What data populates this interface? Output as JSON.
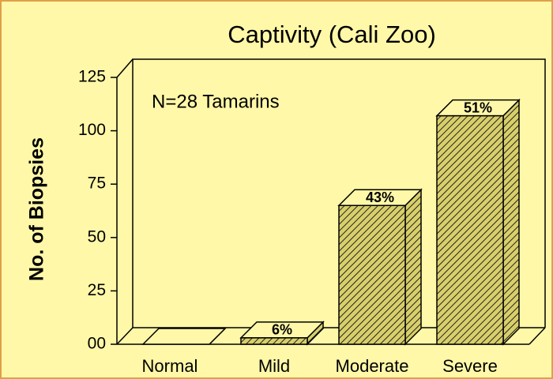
{
  "chart_data": {
    "type": "bar3d",
    "title": "Captivity (Cali Zoo)",
    "annotation": "N=28  Tamarins",
    "y_label": "No. of Biopsies",
    "categories": [
      "Normal",
      "Mild",
      "Moderate",
      "Severe"
    ],
    "values": [
      0,
      3,
      65,
      107
    ],
    "bar_labels": [
      null,
      "6%",
      "43%",
      "51%"
    ],
    "color": "#d9cf6a",
    "ylim": [
      0,
      125
    ],
    "yticks": [
      {
        "value": 0,
        "label": "00"
      },
      25,
      50,
      75,
      100,
      125
    ],
    "grid": false
  }
}
